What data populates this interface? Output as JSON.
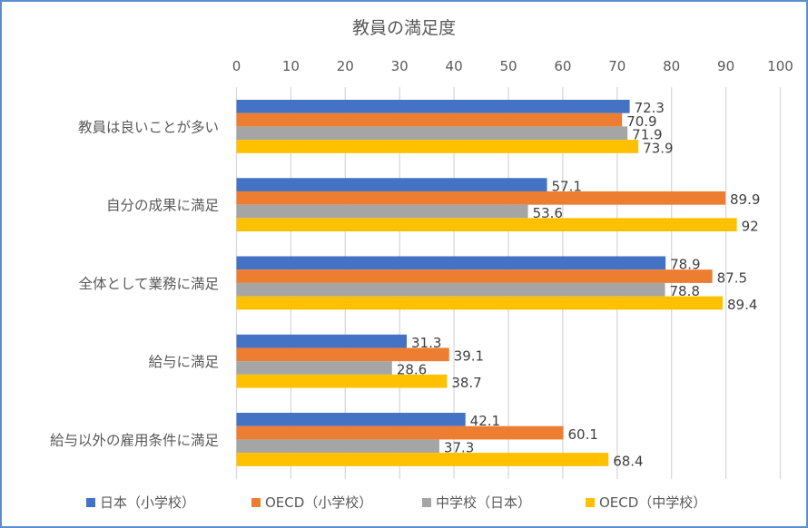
{
  "chart_data": {
    "type": "bar",
    "orientation": "horizontal",
    "title": "教員の満足度",
    "xlabel": "",
    "ylabel": "",
    "xlim": [
      0,
      100
    ],
    "x_ticks": [
      "0",
      "10",
      "20",
      "30",
      "40",
      "50",
      "60",
      "70",
      "80",
      "90",
      "100"
    ],
    "x_axis_position": "top",
    "grid": true,
    "legend_position": "bottom",
    "categories": [
      "教員は良いことが多い",
      "自分の成果に満足",
      "全体として業務に満足",
      "給与に満足",
      "給与以外の雇用条件に満足"
    ],
    "series": [
      {
        "name": "日本（小学校）",
        "color": "#4472C4",
        "values": [
          72.3,
          57.1,
          78.9,
          31.3,
          42.1
        ]
      },
      {
        "name": "OECD（小学校）",
        "color": "#ED7D31",
        "values": [
          70.9,
          89.9,
          87.5,
          39.1,
          60.1
        ]
      },
      {
        "name": "中学校（日本）",
        "color": "#A5A5A5",
        "values": [
          71.9,
          53.6,
          78.8,
          28.6,
          37.3
        ]
      },
      {
        "name": "OECD（中学校）",
        "color": "#FFC000",
        "values": [
          73.9,
          92,
          89.4,
          38.7,
          68.4
        ]
      }
    ],
    "data_labels": [
      [
        "72.3",
        "57.1",
        "78.9",
        "31.3",
        "42.1"
      ],
      [
        "70.9",
        "89.9",
        "87.5",
        "39.1",
        "60.1"
      ],
      [
        "71.9",
        "53.6",
        "78.8",
        "28.6",
        "37.3"
      ],
      [
        "73.9",
        "92",
        "89.4",
        "38.7",
        "68.4"
      ]
    ]
  }
}
